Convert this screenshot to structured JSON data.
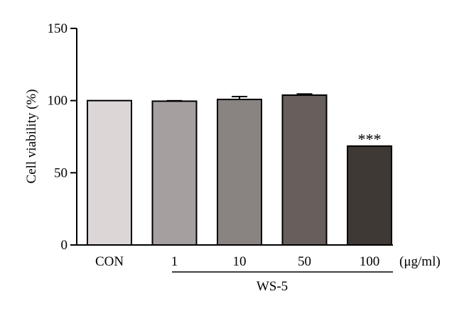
{
  "chart_data": {
    "type": "bar",
    "categories": [
      "CON",
      "1",
      "10",
      "50",
      "100"
    ],
    "values": [
      100,
      99.6,
      100.8,
      103.8,
      68.5
    ],
    "errors": [
      0,
      0.3,
      2.0,
      0.8,
      0
    ],
    "colors": [
      "#dcd6d6",
      "#a59f9f",
      "#898381",
      "#675f5c",
      "#3f3936"
    ],
    "significance": [
      "",
      "",
      "",
      "",
      "***"
    ],
    "ylabel": "Cell viability (%)",
    "ylim": [
      0,
      150
    ],
    "yticks": [
      0,
      50,
      100,
      150
    ],
    "unit_label": "(μg/ml)",
    "group_label": "WS-5",
    "grid": false
  }
}
